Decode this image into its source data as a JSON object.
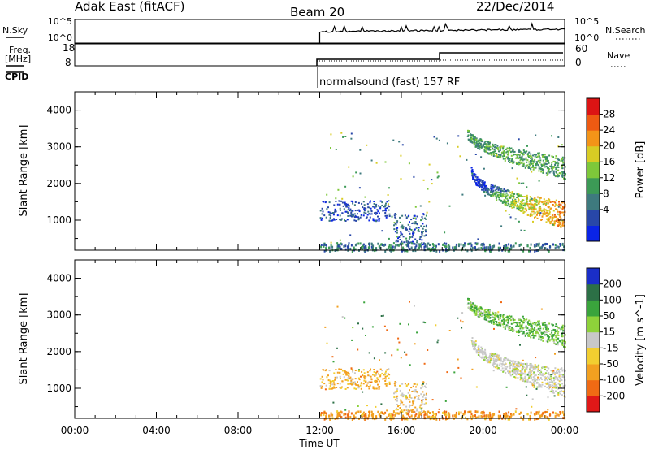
{
  "header": {
    "station": "Adak East (fitACF)",
    "beam": "Beam 20",
    "date": "22/Dec/2014"
  },
  "top_panels": {
    "nsky_label": "N.Sky",
    "nsearch_label": "N.Search",
    "nsky_ticks": [
      "10^5",
      "10^0"
    ],
    "nsearch_ticks": [
      "10^5",
      "10^0"
    ],
    "freq_label_line1": "Freq.",
    "freq_label_line2": "[MHz]",
    "freq_ticks": [
      "18",
      "8"
    ],
    "nave_label": "Nave",
    "nave_ticks": [
      "60",
      "0"
    ],
    "cpid_label": "CPID",
    "cpid_text": "normalsound (fast) 157 RF"
  },
  "chart_data": [
    {
      "type": "heatmap",
      "name": "power",
      "ylabel": "Slant Range [km]",
      "yticks": [
        "4000",
        "3000",
        "2000",
        "1000"
      ],
      "ylim": [
        180,
        4500
      ],
      "colorbar": {
        "label": "Power [dB]",
        "ticks": [
          "28",
          "24",
          "20",
          "16",
          "12",
          "8",
          "4"
        ],
        "colors": [
          "#0a24e6",
          "#2847a8",
          "#3e7a7e",
          "#3c9a56",
          "#7ec83a",
          "#d8cc24",
          "#f39418",
          "#ee5a12",
          "#dc1414"
        ]
      },
      "features": [
        {
          "t_start": 12.0,
          "t_end": 15.4,
          "r_low": 1000,
          "r_high": 1550,
          "value_db": 6
        },
        {
          "t_start": 15.6,
          "t_end": 17.2,
          "r_low": 350,
          "r_high": 1200,
          "value_db": 8
        },
        {
          "t_start": 12.0,
          "t_end": 24.0,
          "r_low": 180,
          "r_high": 400,
          "value_db": 10
        },
        {
          "t_start": 19.4,
          "t_end": 24.0,
          "r_low": 1050,
          "r_high": 2550,
          "value_db": 24
        },
        {
          "t_start": 19.2,
          "t_end": 24.0,
          "r_low": 2300,
          "r_high": 3550,
          "value_db": 14
        }
      ]
    },
    {
      "type": "heatmap",
      "name": "velocity",
      "xlabel": "Time UT",
      "xticks": [
        "00:00",
        "04:00",
        "08:00",
        "12:00",
        "16:00",
        "20:00",
        "00:00"
      ],
      "xlim": [
        0,
        24
      ],
      "ylabel": "Slant Range [km]",
      "yticks": [
        "4000",
        "3000",
        "2000",
        "1000"
      ],
      "ylim": [
        180,
        4500
      ],
      "colorbar": {
        "label": "Velocity [m s^-1]",
        "ticks": [
          "200",
          "100",
          "50",
          "15",
          "-15",
          "-50",
          "-100",
          "-200"
        ],
        "colors": [
          "#1a2ec8",
          "#2c7046",
          "#3aa43c",
          "#8ed23a",
          "#c8c8c8",
          "#f2ce30",
          "#f2a020",
          "#f06a14",
          "#e01818"
        ]
      },
      "features": [
        {
          "t_start": 12.0,
          "t_end": 15.4,
          "r_low": 1000,
          "r_high": 1550,
          "value_ms": -40
        },
        {
          "t_start": 15.6,
          "t_end": 17.2,
          "r_low": 350,
          "r_high": 1200,
          "value_ms": -20
        },
        {
          "t_start": 12.0,
          "t_end": 24.0,
          "r_low": 180,
          "r_high": 400,
          "value_ms": -60
        },
        {
          "t_start": 19.4,
          "t_end": 24.0,
          "r_low": 1050,
          "r_high": 2550,
          "value_ms": 0
        },
        {
          "t_start": 19.2,
          "t_end": 24.0,
          "r_low": 2300,
          "r_high": 3550,
          "value_ms": 30
        }
      ]
    }
  ]
}
